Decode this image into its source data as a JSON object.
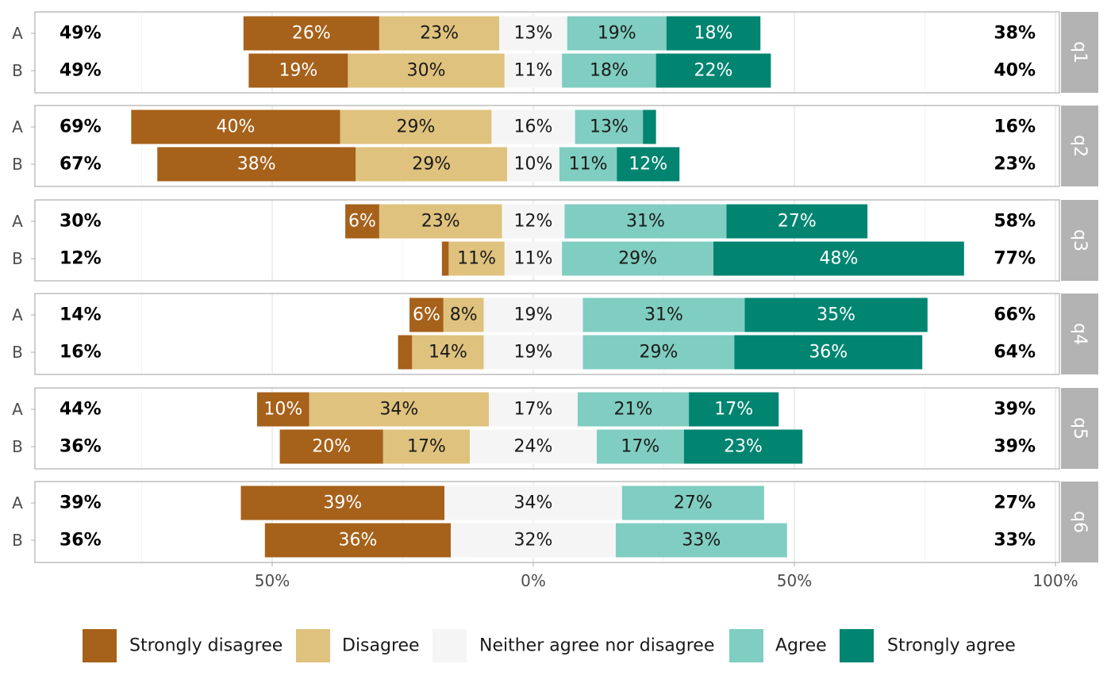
{
  "chart_data": {
    "type": "bar",
    "subtype": "diverging-stacked-horizontal",
    "title": "",
    "xlabel": "",
    "ylabel": "",
    "xlim": [
      -85,
      100
    ],
    "x_ticks": [
      {
        "value": -50,
        "label": "50%"
      },
      {
        "value": 0,
        "label": "0%"
      },
      {
        "value": 50,
        "label": "50%"
      },
      {
        "value": 100,
        "label": "100%"
      }
    ],
    "grid": true,
    "legend_position": "bottom",
    "levels": [
      "Strongly disagree",
      "Disagree",
      "Neither agree nor disagree",
      "Agree",
      "Strongly agree"
    ],
    "colors": [
      "#a6611a",
      "#dfc27d",
      "#f5f5f5",
      "#80cdc1",
      "#018571"
    ],
    "label_colors": [
      "#ffffff",
      "#1a1a1a",
      "#1a1a1a",
      "#1a1a1a",
      "#ffffff"
    ],
    "facets": [
      {
        "name": "q1",
        "rows": [
          {
            "group": "A",
            "values": [
              26,
              23,
              13,
              19,
              18
            ],
            "labels": [
              "26%",
              "23%",
              "13%",
              "19%",
              "18%"
            ],
            "left_total": "49%",
            "right_total": "38%"
          },
          {
            "group": "B",
            "values": [
              19,
              30,
              11,
              18,
              22
            ],
            "labels": [
              "19%",
              "30%",
              "11%",
              "18%",
              "22%"
            ],
            "left_total": "49%",
            "right_total": "40%"
          }
        ]
      },
      {
        "name": "q2",
        "rows": [
          {
            "group": "A",
            "values": [
              40,
              29,
              16,
              13,
              2.5
            ],
            "labels": [
              "40%",
              "29%",
              "16%",
              "13%",
              ""
            ],
            "left_total": "69%",
            "right_total": "16%"
          },
          {
            "group": "B",
            "values": [
              38,
              29,
              10,
              11,
              12
            ],
            "labels": [
              "38%",
              "29%",
              "10%",
              "11%",
              "12%"
            ],
            "left_total": "67%",
            "right_total": "23%"
          }
        ]
      },
      {
        "name": "q3",
        "rows": [
          {
            "group": "A",
            "values": [
              6.5,
              23.5,
              12,
              31,
              27
            ],
            "labels": [
              "6%",
              "23%",
              "12%",
              "31%",
              "27%"
            ],
            "left_total": "30%",
            "right_total": "58%"
          },
          {
            "group": "B",
            "values": [
              1.3,
              10.7,
              11,
              29,
              48
            ],
            "labels": [
              "",
              "11%",
              "11%",
              "29%",
              "48%"
            ],
            "left_total": "12%",
            "right_total": "77%"
          }
        ]
      },
      {
        "name": "q4",
        "rows": [
          {
            "group": "A",
            "values": [
              6.5,
              7.7,
              19,
              31,
              35
            ],
            "labels": [
              "6%",
              "8%",
              "19%",
              "31%",
              "35%"
            ],
            "left_total": "14%",
            "right_total": "66%"
          },
          {
            "group": "B",
            "values": [
              2.7,
              13.7,
              19,
              29,
              36
            ],
            "labels": [
              "",
              "14%",
              "19%",
              "29%",
              "36%"
            ],
            "left_total": "16%",
            "right_total": "64%"
          }
        ]
      },
      {
        "name": "q5",
        "rows": [
          {
            "group": "A",
            "values": [
              10,
              34.4,
              17,
              21.3,
              17.2
            ],
            "labels": [
              "10%",
              "34%",
              "17%",
              "21%",
              "17%"
            ],
            "left_total": "44%",
            "right_total": "39%"
          },
          {
            "group": "B",
            "values": [
              19.8,
              16.6,
              24.3,
              16.7,
              22.7
            ],
            "labels": [
              "20%",
              "17%",
              "24%",
              "17%",
              "23%"
            ],
            "left_total": "36%",
            "right_total": "39%"
          }
        ]
      },
      {
        "name": "q6",
        "rows": [
          {
            "group": "A",
            "values": [
              39,
              0,
              34,
              27.2,
              0
            ],
            "labels": [
              "39%",
              "",
              "34%",
              "27%",
              ""
            ],
            "left_total": "39%",
            "right_total": "27%"
          },
          {
            "group": "B",
            "values": [
              35.6,
              0,
              31.6,
              32.8,
              0
            ],
            "labels": [
              "36%",
              "",
              "32%",
              "33%",
              ""
            ],
            "left_total": "36%",
            "right_total": "33%"
          }
        ]
      }
    ]
  }
}
